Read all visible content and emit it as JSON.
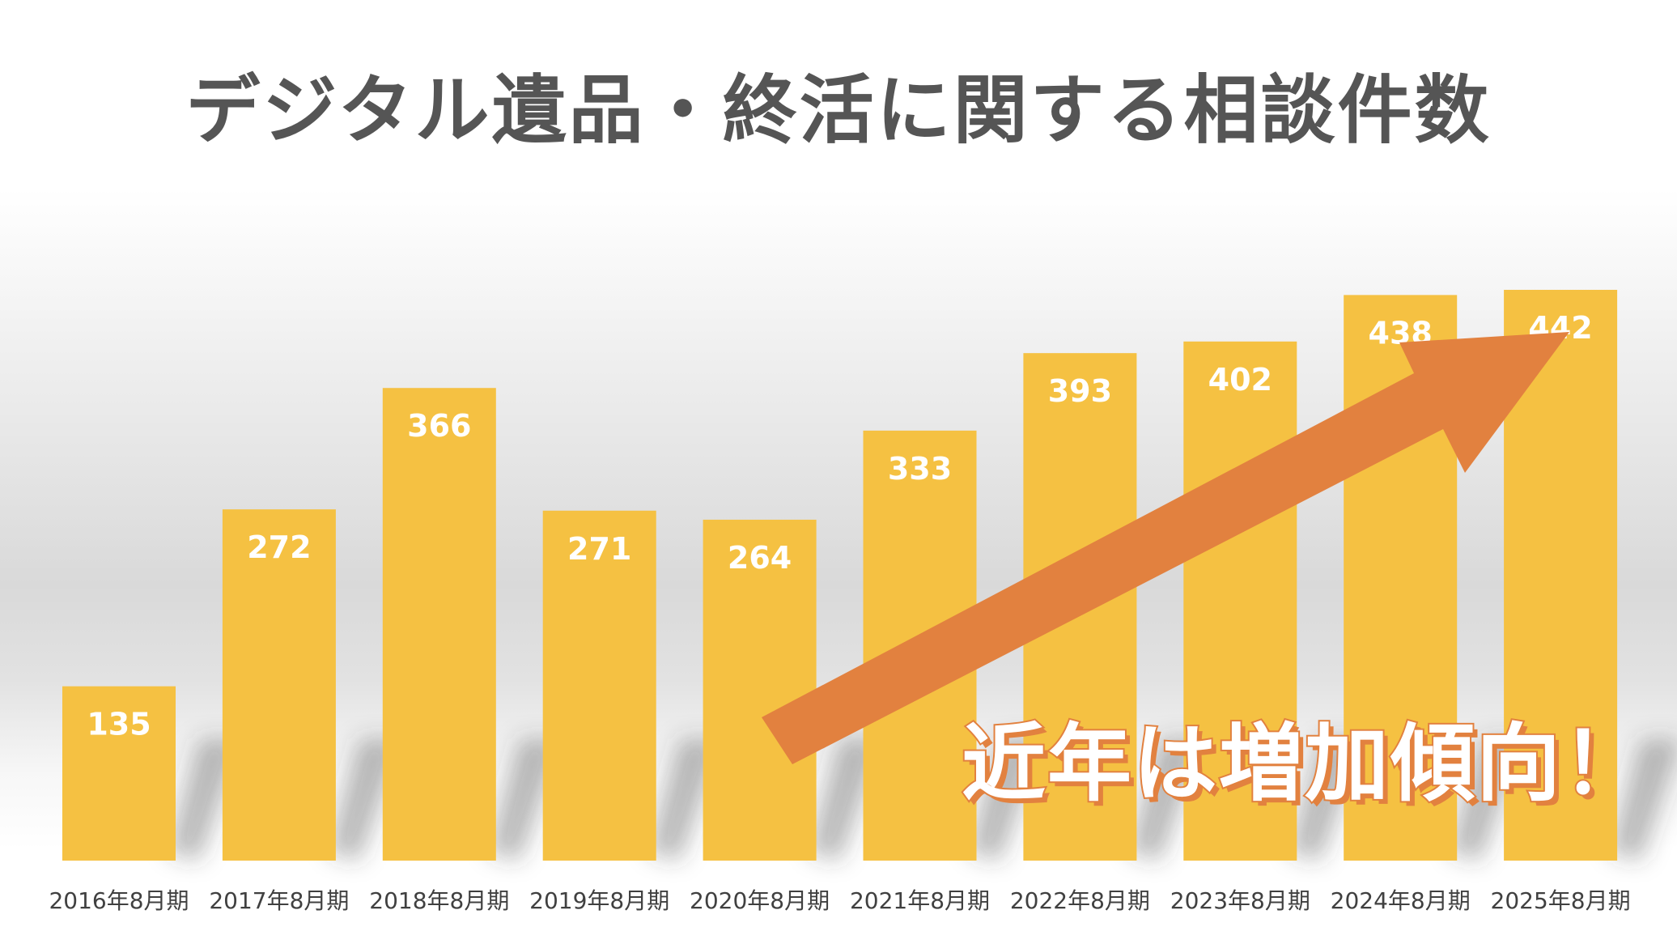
{
  "chart_data": {
    "type": "bar",
    "title": "デジタル遺品・終活に関する相談件数",
    "categories": [
      "2016年8月期",
      "2017年8月期",
      "2018年8月期",
      "2019年8月期",
      "2020年8月期",
      "2021年8月期",
      "2022年8月期",
      "2023年8月期",
      "2024年8月期",
      "2025年8月期"
    ],
    "values": [
      135,
      272,
      366,
      271,
      264,
      333,
      393,
      402,
      438,
      442
    ],
    "data_labels": [
      "135",
      "272",
      "366",
      "271",
      "264",
      "333",
      "393",
      "402",
      "438",
      "442"
    ],
    "xlabel": "",
    "ylabel": "",
    "ylim": [
      0,
      450
    ],
    "grid": false,
    "legend": "none",
    "bar_color": "#f5c142",
    "annotation": {
      "text": "近年は増加傾向！",
      "arrow": "up-right",
      "arrow_color": "#e2813f"
    }
  }
}
